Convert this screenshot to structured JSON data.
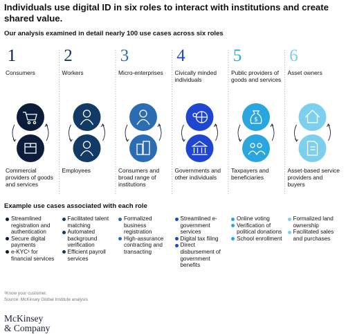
{
  "header": {
    "title": "Individuals use digital ID in six roles to interact with institutions and create shared value.",
    "subtitle": "Our analysis examined in detail nearly 100 use cases across six roles"
  },
  "roles": [
    {
      "number": "1",
      "label": "Consumers",
      "counterpart": "Commercial providers of goods and services"
    },
    {
      "number": "2",
      "label": "Workers",
      "counterpart": "Employees"
    },
    {
      "number": "3",
      "label": "Micro-enterprises",
      "counterpart": "Consumers and broad range of institutions"
    },
    {
      "number": "4",
      "label": "Civically minded individuals",
      "counterpart": "Governments and other individuals"
    },
    {
      "number": "5",
      "label": "Public providers of goods and services",
      "counterpart": "Taxpayers and beneficiaries"
    },
    {
      "number": "6",
      "label": "Asset owners",
      "counterpart": "Asset-based service providers and buyers"
    }
  ],
  "use_cases": {
    "heading": "Example use cases associated with each role",
    "columns": [
      [
        "Streamlined registration and authentication",
        "Secure digital payments",
        "e-KYC¹ for financial services"
      ],
      [
        "Facilitated talent matching",
        "Automated background verification",
        "Efficient payroll services"
      ],
      [
        "Formalized business registration",
        "High-assurance contracting and transacting"
      ],
      [
        "Streamlined e-government services",
        "Digital tax filing",
        "Direct disbursement of government benefits"
      ],
      [
        "Online voting",
        "Verification of political donations",
        "School enrollment"
      ],
      [
        "Formalized land ownership",
        "Facilitated sales and purchases"
      ]
    ]
  },
  "footnotes": [
    "¹Know your customer.",
    "Source: McKinsey Global Institute analysis"
  ],
  "logo": [
    "McKinsey",
    "& Company"
  ]
}
